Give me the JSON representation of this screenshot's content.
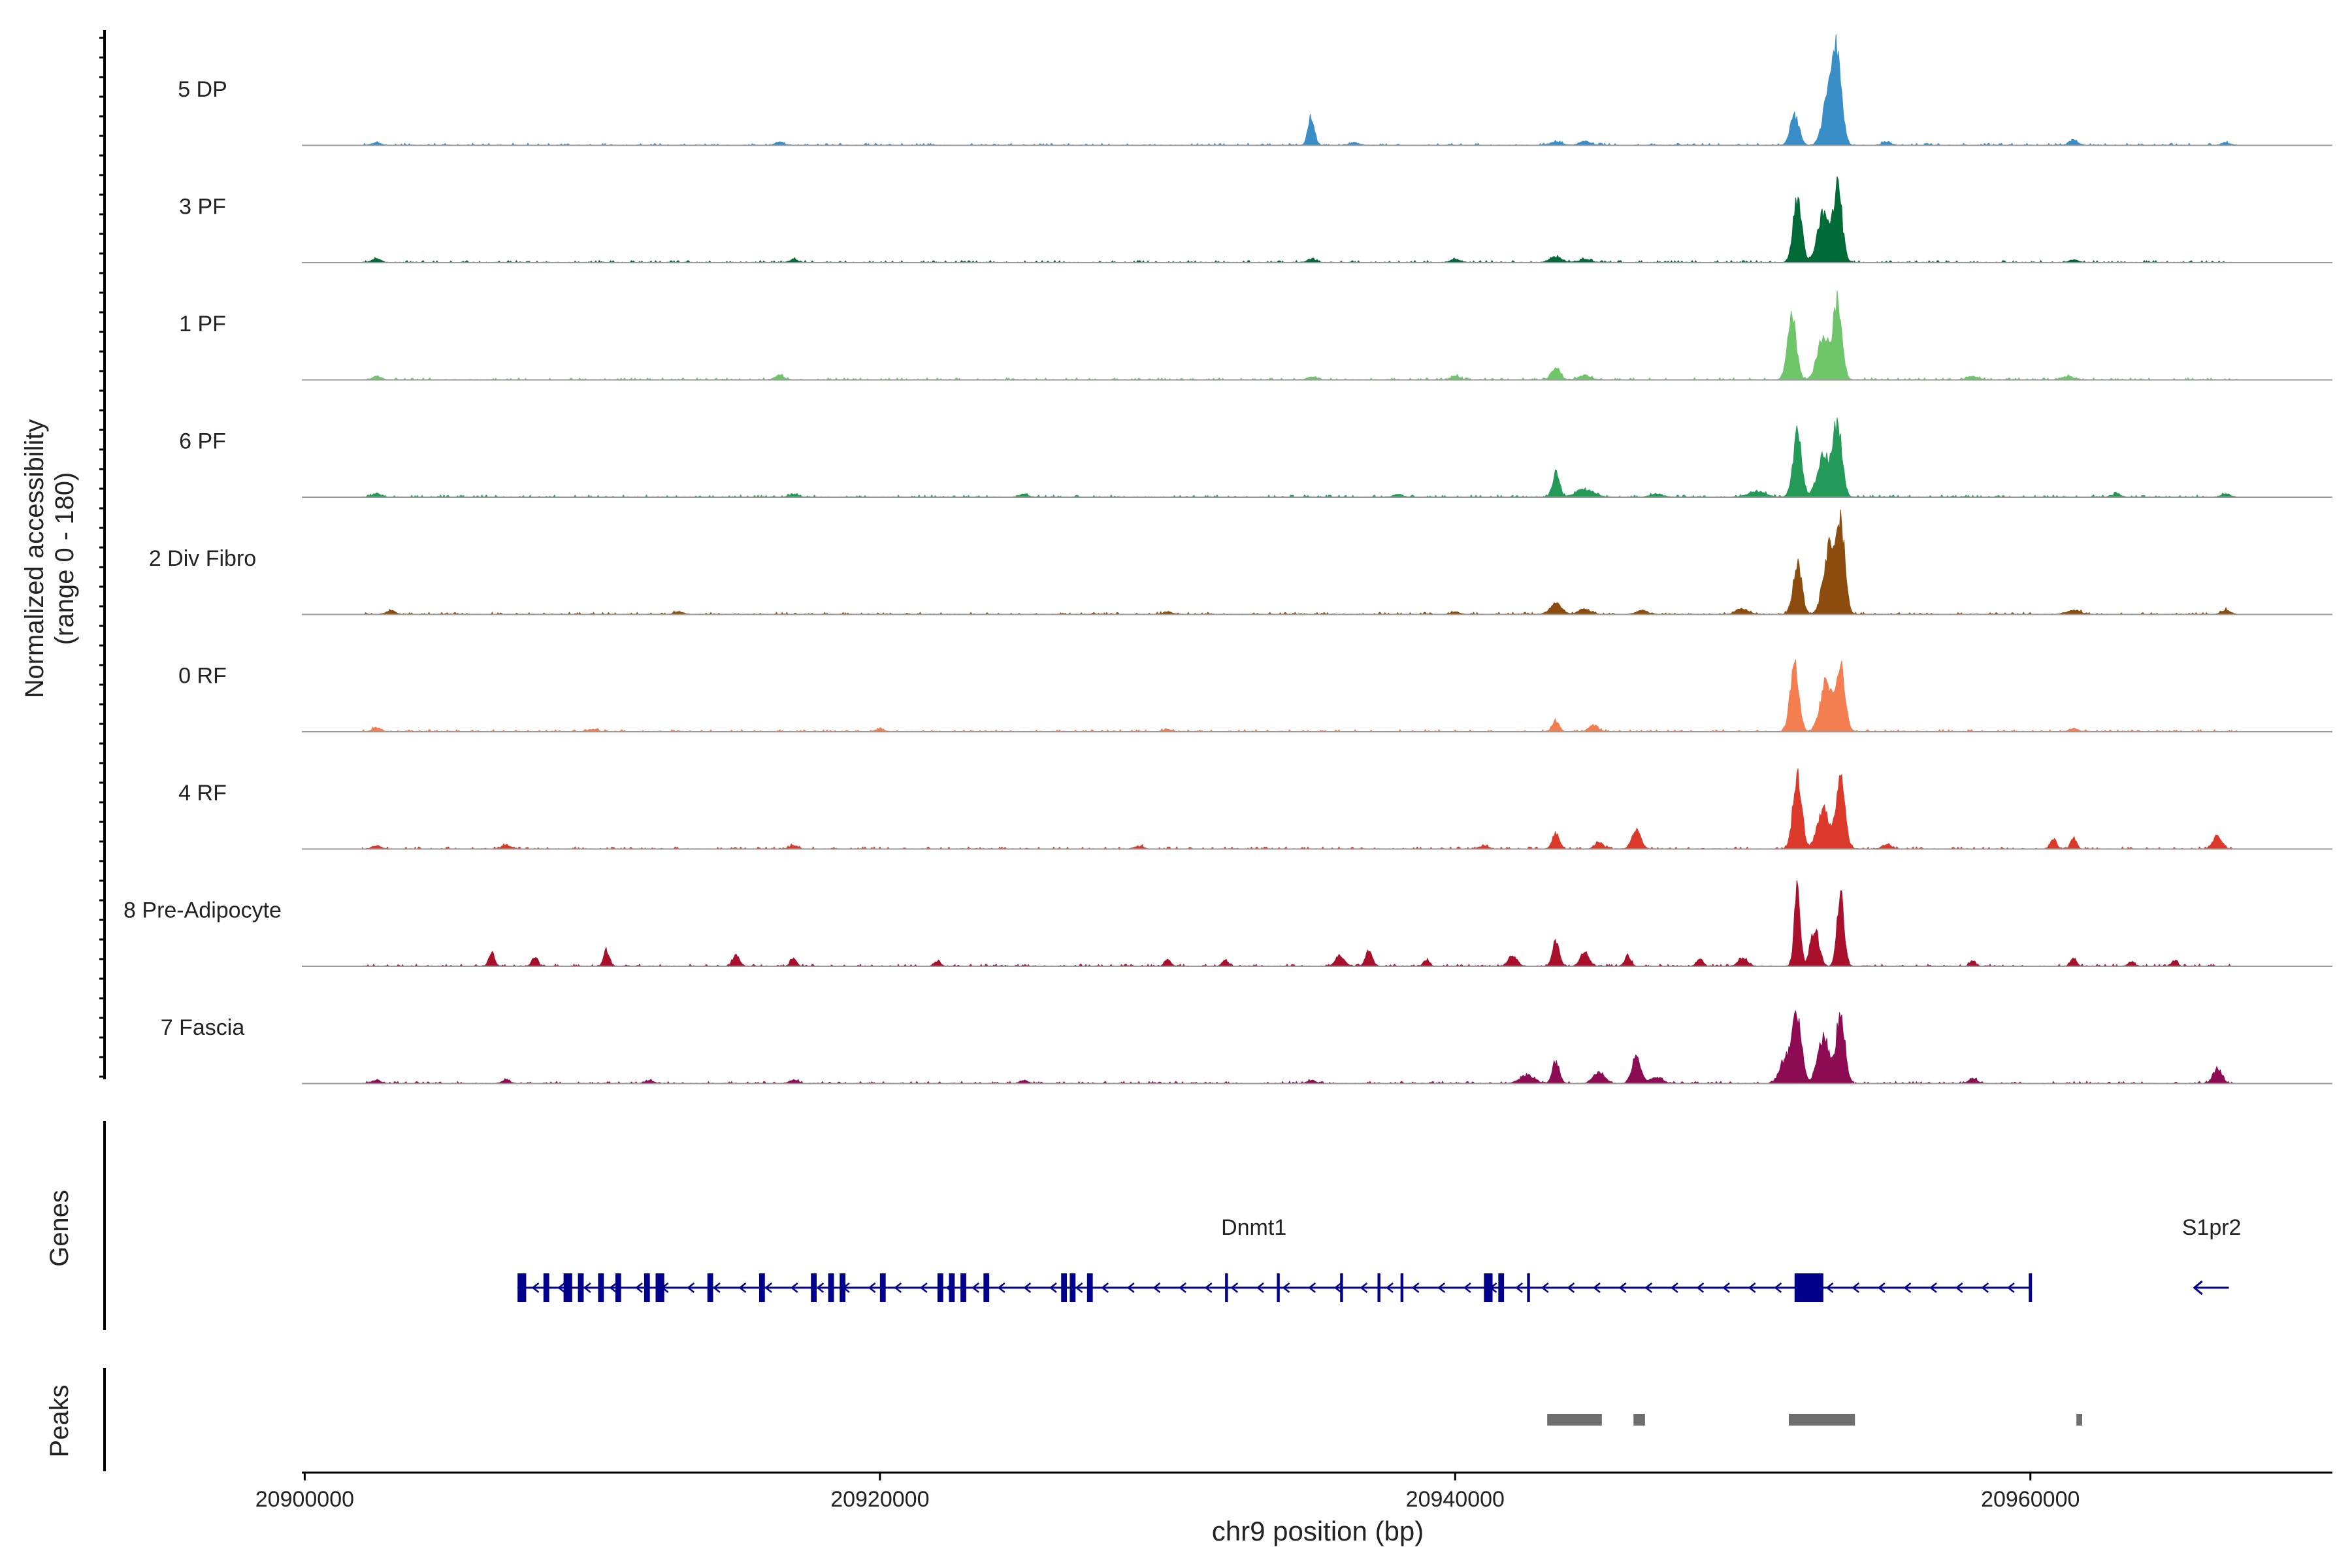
{
  "chart_data": {
    "type": "area",
    "ylabel_line1": "Normalized accessibility",
    "ylabel_line2": "(range 0 - 180)",
    "xlabel": "chr9 position (bp)",
    "xlim": [
      20899900,
      20970500
    ],
    "ylim": [
      0,
      180
    ],
    "x_ticks": [
      20900000,
      20920000,
      20940000,
      20960000
    ],
    "x_tick_labels": [
      "20900000",
      "20920000",
      "20940000",
      "20960000"
    ],
    "track_labels": {
      "genes": "Genes",
      "peaks": "Peaks"
    },
    "series": [
      {
        "name": "5 DP",
        "color": "#3a8ec8",
        "peaks": [
          [
            20902500,
            5,
            150
          ],
          [
            20916500,
            6,
            150
          ],
          [
            20935000,
            55,
            110
          ],
          [
            20936500,
            5,
            150
          ],
          [
            20943500,
            6,
            200
          ],
          [
            20944500,
            7,
            200
          ],
          [
            20951800,
            55,
            150
          ],
          [
            20953000,
            100,
            200
          ],
          [
            20953300,
            155,
            150
          ],
          [
            20955000,
            6,
            150
          ],
          [
            20961500,
            10,
            150
          ],
          [
            20966800,
            4,
            150
          ]
        ]
      },
      {
        "name": "3 PF",
        "color": "#006b36",
        "peaks": [
          [
            20902500,
            7,
            150
          ],
          [
            20917000,
            5,
            150
          ],
          [
            20935000,
            6,
            150
          ],
          [
            20940000,
            6,
            150
          ],
          [
            20943500,
            10,
            200
          ],
          [
            20944500,
            6,
            200
          ],
          [
            20951900,
            115,
            150
          ],
          [
            20952800,
            90,
            200
          ],
          [
            20953300,
            140,
            150
          ],
          [
            20961500,
            5,
            150
          ]
        ]
      },
      {
        "name": "1 PF",
        "color": "#6ec56a",
        "peaks": [
          [
            20902500,
            6,
            150
          ],
          [
            20916500,
            8,
            150
          ],
          [
            20935000,
            5,
            150
          ],
          [
            20940000,
            7,
            150
          ],
          [
            20943500,
            22,
            150
          ],
          [
            20944500,
            8,
            200
          ],
          [
            20951700,
            125,
            150
          ],
          [
            20952800,
            85,
            200
          ],
          [
            20953300,
            150,
            150
          ],
          [
            20958000,
            6,
            200
          ],
          [
            20961300,
            6,
            200
          ]
        ]
      },
      {
        "name": "6 PF",
        "color": "#239a57",
        "peaks": [
          [
            20902500,
            6,
            150
          ],
          [
            20917000,
            5,
            150
          ],
          [
            20925000,
            5,
            150
          ],
          [
            20938000,
            5,
            150
          ],
          [
            20943500,
            45,
            120
          ],
          [
            20944500,
            14,
            300
          ],
          [
            20947000,
            6,
            200
          ],
          [
            20950500,
            10,
            300
          ],
          [
            20951900,
            120,
            150
          ],
          [
            20952800,
            85,
            200
          ],
          [
            20953300,
            140,
            150
          ],
          [
            20963000,
            6,
            150
          ],
          [
            20966800,
            6,
            150
          ]
        ]
      },
      {
        "name": "2 Div Fibro",
        "color": "#8b4c0e",
        "peaks": [
          [
            20903000,
            7,
            150
          ],
          [
            20913000,
            5,
            150
          ],
          [
            20930000,
            5,
            150
          ],
          [
            20940000,
            5,
            150
          ],
          [
            20943500,
            20,
            200
          ],
          [
            20944500,
            10,
            200
          ],
          [
            20946500,
            7,
            200
          ],
          [
            20950000,
            10,
            200
          ],
          [
            20951900,
            95,
            150
          ],
          [
            20953000,
            120,
            200
          ],
          [
            20953400,
            170,
            150
          ],
          [
            20961500,
            7,
            250
          ],
          [
            20966800,
            8,
            150
          ]
        ]
      },
      {
        "name": "0 RF",
        "color": "#f37e4f",
        "peaks": [
          [
            20902500,
            7,
            150
          ],
          [
            20910000,
            4,
            150
          ],
          [
            20920000,
            4,
            150
          ],
          [
            20930000,
            4,
            150
          ],
          [
            20943500,
            20,
            120
          ],
          [
            20944800,
            12,
            150
          ],
          [
            20951800,
            120,
            150
          ],
          [
            20952900,
            95,
            200
          ],
          [
            20953400,
            125,
            150
          ],
          [
            20961500,
            6,
            150
          ]
        ]
      },
      {
        "name": "4 RF",
        "color": "#db3a2b",
        "peaks": [
          [
            20902500,
            6,
            150
          ],
          [
            20907000,
            7,
            150
          ],
          [
            20917000,
            6,
            150
          ],
          [
            20929000,
            5,
            150
          ],
          [
            20941000,
            6,
            150
          ],
          [
            20943500,
            30,
            120
          ],
          [
            20945000,
            12,
            150
          ],
          [
            20946300,
            40,
            150
          ],
          [
            20951900,
            140,
            150
          ],
          [
            20952800,
            80,
            200
          ],
          [
            20953400,
            140,
            150
          ],
          [
            20955000,
            8,
            150
          ],
          [
            20960800,
            20,
            100
          ],
          [
            20961500,
            20,
            100
          ],
          [
            20966500,
            25,
            150
          ]
        ]
      },
      {
        "name": "8 Pre-Adipocyte",
        "color": "#a8102c",
        "peaks": [
          [
            20906500,
            25,
            100
          ],
          [
            20908000,
            18,
            100
          ],
          [
            20910500,
            30,
            100
          ],
          [
            20915000,
            20,
            120
          ],
          [
            20917000,
            15,
            100
          ],
          [
            20922000,
            10,
            100
          ],
          [
            20930000,
            15,
            100
          ],
          [
            20932000,
            10,
            100
          ],
          [
            20936000,
            20,
            150
          ],
          [
            20937000,
            30,
            120
          ],
          [
            20939000,
            12,
            100
          ],
          [
            20942000,
            20,
            150
          ],
          [
            20943500,
            45,
            120
          ],
          [
            20944500,
            25,
            150
          ],
          [
            20946000,
            20,
            100
          ],
          [
            20948500,
            15,
            100
          ],
          [
            20950000,
            15,
            150
          ],
          [
            20951900,
            150,
            100
          ],
          [
            20952500,
            70,
            150
          ],
          [
            20953400,
            130,
            120
          ],
          [
            20958000,
            10,
            100
          ],
          [
            20961500,
            15,
            100
          ],
          [
            20963500,
            8,
            100
          ],
          [
            20965000,
            10,
            100
          ]
        ]
      },
      {
        "name": "7 Fascia",
        "color": "#8c0b53",
        "peaks": [
          [
            20902500,
            6,
            150
          ],
          [
            20907000,
            5,
            150
          ],
          [
            20912000,
            5,
            150
          ],
          [
            20917000,
            6,
            150
          ],
          [
            20925000,
            5,
            150
          ],
          [
            20935000,
            5,
            150
          ],
          [
            20942500,
            15,
            250
          ],
          [
            20943500,
            40,
            120
          ],
          [
            20945000,
            20,
            200
          ],
          [
            20946300,
            50,
            150
          ],
          [
            20947000,
            12,
            200
          ],
          [
            20951500,
            50,
            200
          ],
          [
            20951900,
            130,
            150
          ],
          [
            20952800,
            85,
            200
          ],
          [
            20953400,
            130,
            150
          ],
          [
            20958000,
            8,
            150
          ],
          [
            20966500,
            28,
            150
          ]
        ]
      }
    ],
    "genes": [
      {
        "name": "Dnmt1",
        "strand": "-",
        "start": 20907400,
        "end": 20960000,
        "exons": [
          [
            20907400,
            20907700
          ],
          [
            20908300,
            20908500
          ],
          [
            20909000,
            20909300
          ],
          [
            20909500,
            20909700
          ],
          [
            20910200,
            20910400
          ],
          [
            20910800,
            20911000
          ],
          [
            20911800,
            20912000
          ],
          [
            20912200,
            20912500
          ],
          [
            20914000,
            20914200
          ],
          [
            20915800,
            20916000
          ],
          [
            20917600,
            20917800
          ],
          [
            20918200,
            20918400
          ],
          [
            20918600,
            20918800
          ],
          [
            20920000,
            20920200
          ],
          [
            20922000,
            20922200
          ],
          [
            20922400,
            20922600
          ],
          [
            20922800,
            20923000
          ],
          [
            20923600,
            20923800
          ],
          [
            20926300,
            20926500
          ],
          [
            20926600,
            20926800
          ],
          [
            20927200,
            20927400
          ],
          [
            20932000,
            20932100
          ],
          [
            20933800,
            20933900
          ],
          [
            20936000,
            20936100
          ],
          [
            20937300,
            20937400
          ],
          [
            20938100,
            20938200
          ],
          [
            20941000,
            20941300
          ],
          [
            20941500,
            20941700
          ],
          [
            20942500,
            20942600
          ],
          [
            20951800,
            20952800
          ]
        ]
      },
      {
        "name": "S1pr2",
        "strand": "-",
        "start": 20965700,
        "end": 20966900,
        "exons": []
      }
    ],
    "peak_regions": [
      [
        20943200,
        20945100
      ],
      [
        20946200,
        20946600
      ],
      [
        20951600,
        20953900
      ],
      [
        20961600,
        20961800
      ]
    ]
  }
}
